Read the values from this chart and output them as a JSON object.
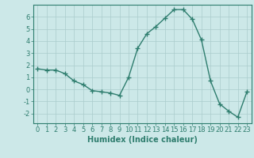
{
  "x": [
    0,
    1,
    2,
    3,
    4,
    5,
    6,
    7,
    8,
    9,
    10,
    11,
    12,
    13,
    14,
    15,
    16,
    17,
    18,
    19,
    20,
    21,
    22,
    23
  ],
  "y": [
    1.7,
    1.6,
    1.6,
    1.3,
    0.7,
    0.4,
    -0.1,
    -0.2,
    -0.3,
    -0.5,
    1.0,
    3.4,
    4.6,
    5.2,
    5.9,
    6.6,
    6.6,
    5.8,
    4.1,
    0.7,
    -1.2,
    -1.8,
    -2.3,
    -0.2
  ],
  "line_color": "#2e7d6e",
  "marker": "+",
  "marker_size": 4,
  "marker_linewidth": 1.0,
  "bg_color": "#cce8e8",
  "grid_color": "#aacccc",
  "xlabel": "Humidex (Indice chaleur)",
  "xlim": [
    -0.5,
    23.5
  ],
  "ylim": [
    -2.8,
    7.0
  ],
  "yticks": [
    -2,
    -1,
    0,
    1,
    2,
    3,
    4,
    5,
    6
  ],
  "xticks": [
    0,
    1,
    2,
    3,
    4,
    5,
    6,
    7,
    8,
    9,
    10,
    11,
    12,
    13,
    14,
    15,
    16,
    17,
    18,
    19,
    20,
    21,
    22,
    23
  ],
  "tick_label_fontsize": 6,
  "xlabel_fontsize": 7,
  "linewidth": 1.0
}
